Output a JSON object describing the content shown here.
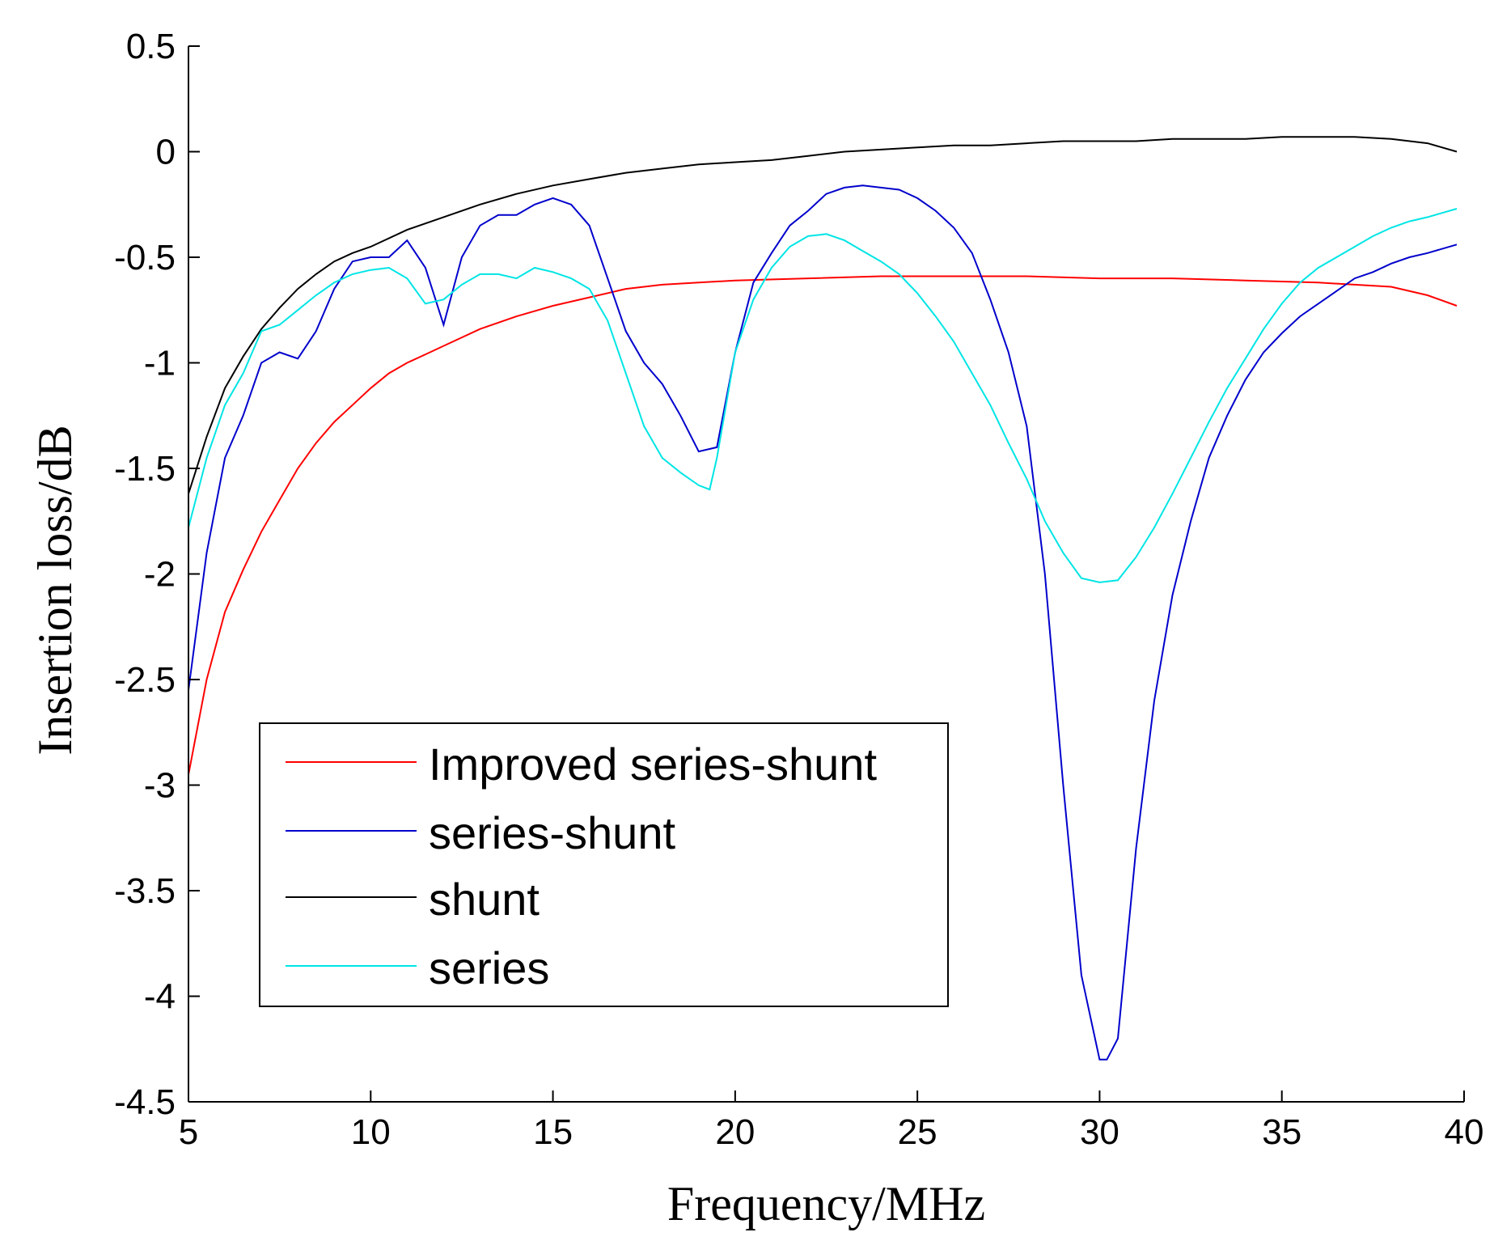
{
  "chart_data": {
    "type": "line",
    "title": "",
    "xlabel": "Frequency/MHz",
    "ylabel": "Insertion loss/dB",
    "xlim": [
      5,
      40
    ],
    "ylim": [
      -4.5,
      0.5
    ],
    "xticks": [
      5,
      10,
      15,
      20,
      25,
      30,
      35,
      40
    ],
    "xtick_labels": [
      "5",
      "10",
      "15",
      "20",
      "25",
      "30",
      "35",
      "40"
    ],
    "yticks": [
      0.5,
      0,
      -0.5,
      -1,
      -1.5,
      -2,
      -2.5,
      -3,
      -3.5,
      -4,
      -4.5
    ],
    "ytick_labels": [
      "0.5",
      "0",
      "-0.5",
      "-1",
      "-1.5",
      "-2",
      "-2.5",
      "-3",
      "-3.5",
      "-4",
      "-4.5"
    ],
    "grid": false,
    "legend_position": "lower-left",
    "series": [
      {
        "name": "Improved series-shunt",
        "color": "#ff0000",
        "x": [
          5,
          5.5,
          6,
          6.5,
          7,
          7.5,
          8,
          8.5,
          9,
          9.5,
          10,
          10.5,
          11,
          11.5,
          12,
          13,
          14,
          15,
          16,
          17,
          18,
          19,
          20,
          22,
          24,
          26,
          28,
          30,
          32,
          34,
          36,
          38,
          39,
          39.8
        ],
        "y": [
          -2.95,
          -2.5,
          -2.18,
          -1.98,
          -1.8,
          -1.65,
          -1.5,
          -1.38,
          -1.28,
          -1.2,
          -1.12,
          -1.05,
          -1.0,
          -0.96,
          -0.92,
          -0.84,
          -0.78,
          -0.73,
          -0.69,
          -0.65,
          -0.63,
          -0.62,
          -0.61,
          -0.6,
          -0.59,
          -0.59,
          -0.59,
          -0.6,
          -0.6,
          -0.61,
          -0.62,
          -0.64,
          -0.68,
          -0.73
        ]
      },
      {
        "name": "series-shunt",
        "color": "#0000cc",
        "x": [
          5,
          5.5,
          6,
          6.5,
          7,
          7.5,
          8,
          8.5,
          9,
          9.5,
          10,
          10.5,
          11,
          11.5,
          12,
          12.5,
          13,
          13.5,
          14,
          14.5,
          15,
          15.5,
          16,
          16.5,
          17,
          17.5,
          18,
          18.5,
          19,
          19.5,
          20,
          20.5,
          21,
          21.5,
          22,
          22.5,
          23,
          23.5,
          24,
          24.5,
          25,
          25.5,
          26,
          26.5,
          27,
          27.5,
          28,
          28.5,
          29,
          29.5,
          30,
          30.2,
          30.5,
          31,
          31.5,
          32,
          32.5,
          33,
          33.5,
          34,
          34.5,
          35,
          35.5,
          36,
          36.5,
          37,
          37.5,
          38,
          38.5,
          39,
          39.8
        ],
        "y": [
          -2.55,
          -1.9,
          -1.45,
          -1.25,
          -1.0,
          -0.95,
          -0.98,
          -0.85,
          -0.65,
          -0.52,
          -0.5,
          -0.5,
          -0.42,
          -0.55,
          -0.82,
          -0.5,
          -0.35,
          -0.3,
          -0.3,
          -0.25,
          -0.22,
          -0.25,
          -0.35,
          -0.6,
          -0.85,
          -1.0,
          -1.1,
          -1.25,
          -1.42,
          -1.4,
          -0.95,
          -0.62,
          -0.48,
          -0.35,
          -0.28,
          -0.2,
          -0.17,
          -0.16,
          -0.17,
          -0.18,
          -0.22,
          -0.28,
          -0.36,
          -0.48,
          -0.7,
          -0.95,
          -1.3,
          -2.0,
          -3.0,
          -3.9,
          -4.3,
          -4.3,
          -4.2,
          -3.3,
          -2.6,
          -2.1,
          -1.75,
          -1.45,
          -1.25,
          -1.08,
          -0.95,
          -0.86,
          -0.78,
          -0.72,
          -0.66,
          -0.6,
          -0.57,
          -0.53,
          -0.5,
          -0.48,
          -0.44
        ]
      },
      {
        "name": "shunt",
        "color": "#000000",
        "x": [
          5,
          5.5,
          6,
          6.5,
          7,
          7.5,
          8,
          8.5,
          9,
          9.5,
          10,
          11,
          12,
          13,
          14,
          15,
          16,
          17,
          18,
          19,
          20,
          21,
          22,
          23,
          24,
          25,
          26,
          27,
          28,
          29,
          30,
          31,
          32,
          33,
          34,
          35,
          36,
          37,
          38,
          39,
          39.8
        ],
        "y": [
          -1.62,
          -1.35,
          -1.12,
          -0.97,
          -0.84,
          -0.74,
          -0.65,
          -0.58,
          -0.52,
          -0.48,
          -0.45,
          -0.37,
          -0.31,
          -0.25,
          -0.2,
          -0.16,
          -0.13,
          -0.1,
          -0.08,
          -0.06,
          -0.05,
          -0.04,
          -0.02,
          0.0,
          0.01,
          0.02,
          0.03,
          0.03,
          0.04,
          0.05,
          0.05,
          0.05,
          0.06,
          0.06,
          0.06,
          0.07,
          0.07,
          0.07,
          0.06,
          0.04,
          0.0
        ]
      },
      {
        "name": "series",
        "color": "#00e5e5",
        "x": [
          5,
          5.5,
          6,
          6.5,
          7,
          7.5,
          8,
          8.5,
          9,
          9.5,
          10,
          10.5,
          11,
          11.5,
          12,
          12.5,
          13,
          13.5,
          14,
          14.5,
          15,
          15.5,
          16,
          16.5,
          17,
          17.5,
          18,
          18.5,
          19,
          19.3,
          19.5,
          20,
          20.5,
          21,
          21.5,
          22,
          22.5,
          23,
          23.5,
          24,
          24.5,
          25,
          25.5,
          26,
          26.5,
          27,
          27.5,
          28,
          28.5,
          29,
          29.5,
          30,
          30.5,
          31,
          31.5,
          32,
          32.5,
          33,
          33.5,
          34,
          34.5,
          35,
          35.5,
          36,
          36.5,
          37,
          37.5,
          38,
          38.5,
          39,
          39.8
        ],
        "y": [
          -1.78,
          -1.45,
          -1.2,
          -1.05,
          -0.85,
          -0.82,
          -0.75,
          -0.68,
          -0.62,
          -0.58,
          -0.56,
          -0.55,
          -0.6,
          -0.72,
          -0.7,
          -0.63,
          -0.58,
          -0.58,
          -0.6,
          -0.55,
          -0.57,
          -0.6,
          -0.65,
          -0.8,
          -1.05,
          -1.3,
          -1.45,
          -1.52,
          -1.58,
          -1.6,
          -1.45,
          -0.95,
          -0.7,
          -0.55,
          -0.45,
          -0.4,
          -0.39,
          -0.42,
          -0.47,
          -0.52,
          -0.58,
          -0.67,
          -0.78,
          -0.9,
          -1.05,
          -1.2,
          -1.38,
          -1.55,
          -1.75,
          -1.9,
          -2.02,
          -2.04,
          -2.03,
          -1.92,
          -1.78,
          -1.62,
          -1.45,
          -1.28,
          -1.12,
          -0.98,
          -0.84,
          -0.72,
          -0.62,
          -0.55,
          -0.5,
          -0.45,
          -0.4,
          -0.36,
          -0.33,
          -0.31,
          -0.27
        ]
      }
    ]
  }
}
